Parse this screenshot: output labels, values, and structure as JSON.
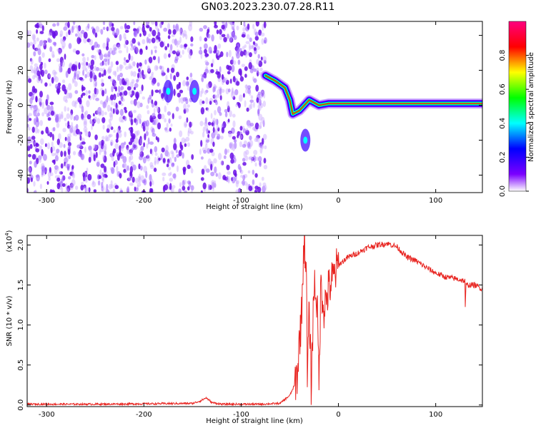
{
  "title": "GN03.2023.230.07.28.R11",
  "chart_data": [
    {
      "type": "heatmap",
      "xlabel": "Height of straight line (km)",
      "ylabel": "Frequency (Hz)",
      "xlim": [
        -320,
        148
      ],
      "ylim": [
        -50,
        48
      ],
      "xticks": [
        -300,
        -200,
        -100,
        0,
        100
      ],
      "yticks": [
        -40,
        -20,
        0,
        20,
        40
      ],
      "colorbar": {
        "label": "Normalized spectral amplitude",
        "ticks": [
          "0.0",
          "0.2",
          "0.4",
          "0.6",
          "0.8"
        ],
        "range": [
          0,
          1
        ],
        "colormap": [
          "#ffffff",
          "#7b00ff",
          "#0000ff",
          "#00ffff",
          "#00ff00",
          "#ffff00",
          "#ff0000",
          "#ff0080"
        ]
      },
      "noise_region": {
        "x_from": -320,
        "x_to": -75,
        "gap_x": [
          -150,
          -142
        ],
        "amplitude": 0.15
      },
      "features": [
        {
          "label": "cluster",
          "x": -175,
          "y": 8,
          "amplitude": 0.35
        },
        {
          "label": "cluster",
          "x": -148,
          "y": 8,
          "amplitude": 0.35
        },
        {
          "label": "trace",
          "points": [
            [
              -75,
              17
            ],
            [
              -65,
              14
            ],
            [
              -55,
              10
            ],
            [
              -50,
              3
            ],
            [
              -47,
              -5
            ],
            [
              -40,
              -3
            ],
            [
              -30,
              3
            ],
            [
              -20,
              0
            ],
            [
              -10,
              1
            ],
            [
              0,
              1
            ],
            [
              20,
              1
            ],
            [
              50,
              1
            ],
            [
              80,
              1
            ],
            [
              100,
              1
            ],
            [
              120,
              1
            ],
            [
              148,
              1
            ]
          ]
        },
        {
          "label": "spot",
          "x": -34,
          "y": -20,
          "amplitude": 0.3
        }
      ]
    },
    {
      "type": "line",
      "xlabel": "Height of straight line (km)",
      "ylabel": "SNR (10 * v/v)",
      "yscale_label": "(x10",
      "yscale_exp": "4",
      "yscale_close": ")",
      "xlim": [
        -320,
        148
      ],
      "ylim": [
        -0.02,
        2.12
      ],
      "xticks": [
        -300,
        -200,
        -100,
        0,
        100
      ],
      "yticks": [
        "0.0",
        "0.5",
        "1.0",
        "1.5",
        "2.0"
      ],
      "color": "#e8231f",
      "series": [
        {
          "x": [
            -320,
            -250,
            -150,
            -142,
            -136,
            -130,
            -120,
            -80,
            -60,
            -50,
            -45,
            -42,
            -40,
            -38,
            -36,
            -35,
            -33,
            -32,
            -30,
            -28,
            -25,
            -22,
            -20,
            -18,
            -15,
            -10,
            -5,
            0,
            10,
            20,
            30,
            40,
            50,
            60,
            70,
            80,
            90,
            100,
            110,
            120,
            130,
            130.5,
            131,
            140,
            148
          ],
          "y": [
            0.01,
            0.01,
            0.02,
            0.05,
            0.09,
            0.03,
            0.01,
            0.01,
            0.02,
            0.12,
            0.25,
            0.4,
            0.85,
            1.1,
            1.9,
            2.1,
            1.7,
            0.3,
            1.2,
            0.25,
            1.55,
            1.3,
            0.3,
            1.55,
            1.2,
            1.45,
            1.6,
            1.75,
            1.85,
            1.9,
            1.97,
            2.0,
            2.02,
            1.98,
            1.85,
            1.8,
            1.72,
            1.65,
            1.6,
            1.58,
            1.55,
            1.15,
            1.5,
            1.5,
            1.45
          ]
        }
      ]
    }
  ]
}
